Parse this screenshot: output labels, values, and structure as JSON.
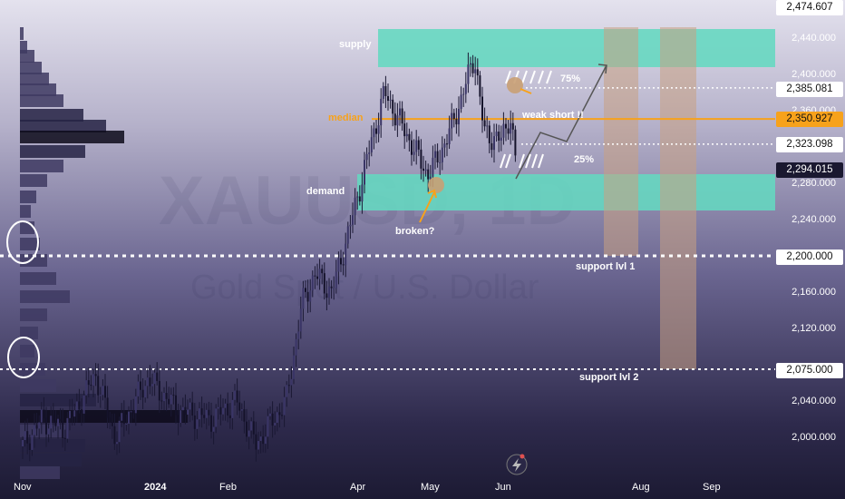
{
  "watermark": {
    "symbol": "XAUUSD, 1D",
    "name": "Gold Spot / U.S. Dollar"
  },
  "zones": {
    "supply": "supply",
    "demand": "demand",
    "median": "median",
    "weak_short": "weak short !!",
    "broken": "broken?",
    "pct_75": "75%",
    "pct_25": "25%",
    "support1": "support lvl 1",
    "support2": "support lvl 2"
  },
  "price_labels": {
    "top": "2,474.607",
    "l2385": "2,385.081",
    "l2350": "2,350.927",
    "l2323": "2,323.098",
    "l2294": "2,294.015",
    "l2200": "2,200.000",
    "l2075": "2,075.000"
  },
  "colors": {
    "supply_demand": "#64d8c0",
    "median": "#f7a21b",
    "projection": "#c8a082"
  },
  "chart_data": {
    "type": "candlestick",
    "y_ticks": [
      "2,440.000",
      "2,400.000",
      "2,360.000",
      "2,280.000",
      "2,240.000",
      "2,160.000",
      "2,120.000",
      "2,040.000",
      "2,000.000"
    ],
    "x_ticks": [
      "Nov",
      "2024",
      "Feb",
      "Apr",
      "May",
      "Jun",
      "Aug",
      "Sep"
    ],
    "ylim": [
      1975,
      2475
    ],
    "levels": {
      "supply": [
        2408,
        2450
      ],
      "demand": [
        2250,
        2290
      ],
      "median": 2350.927,
      "r75": 2385.081,
      "r25": 2323.098,
      "current": 2294.015,
      "s1": 2200,
      "s2": 2075
    },
    "points": [
      [
        "2023-11-01",
        1990
      ],
      [
        "2023-11-10",
        2020
      ],
      [
        "2023-11-20",
        2010
      ],
      [
        "2023-11-30",
        2050
      ],
      [
        "2023-12-04",
        2070
      ],
      [
        "2023-12-13",
        2000
      ],
      [
        "2023-12-28",
        2065
      ],
      [
        "2024-01-10",
        2030
      ],
      [
        "2024-01-25",
        2020
      ],
      [
        "2024-02-05",
        2040
      ],
      [
        "2024-02-14",
        1992
      ],
      [
        "2024-02-28",
        2040
      ],
      [
        "2024-03-06",
        2145
      ],
      [
        "2024-03-12",
        2180
      ],
      [
        "2024-03-20",
        2160
      ],
      [
        "2024-03-28",
        2230
      ],
      [
        "2024-04-05",
        2310
      ],
      [
        "2024-04-12",
        2380
      ],
      [
        "2024-04-22",
        2330
      ],
      [
        "2024-04-30",
        2290
      ],
      [
        "2024-05-03",
        2300
      ],
      [
        "2024-05-10",
        2340
      ],
      [
        "2024-05-20",
        2420
      ],
      [
        "2024-05-24",
        2335
      ],
      [
        "2024-05-31",
        2327
      ],
      [
        "2024-06-04",
        2356
      ],
      [
        "2024-06-07",
        2294
      ]
    ]
  }
}
